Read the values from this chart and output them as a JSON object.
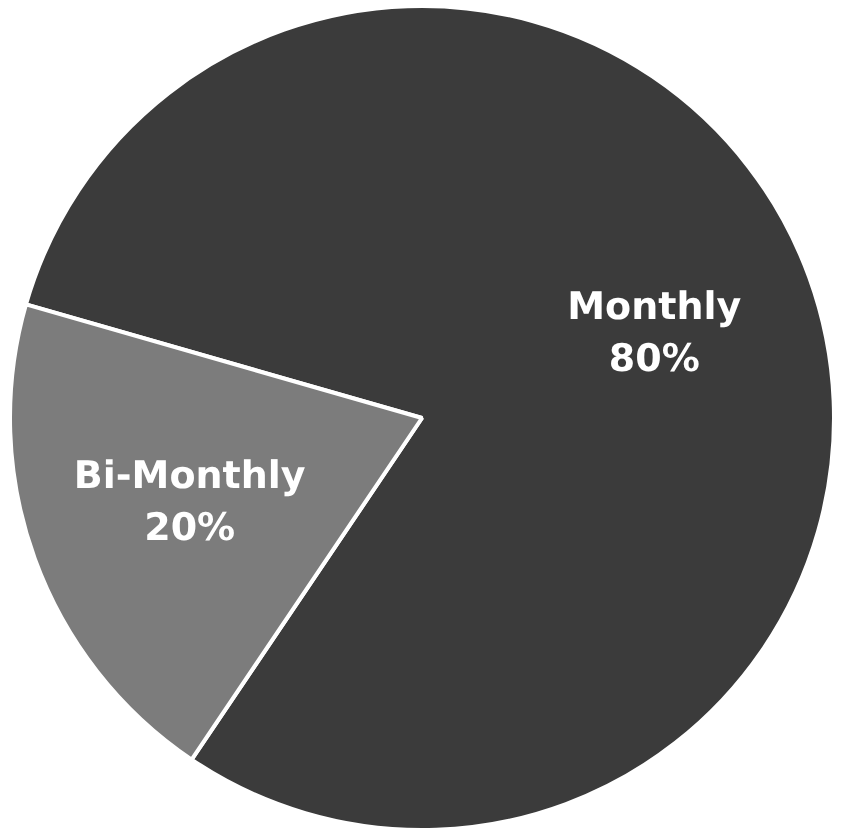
{
  "chart_data": {
    "type": "pie",
    "categories": [
      "Monthly",
      "Bi-Monthly"
    ],
    "values": [
      80,
      20
    ],
    "value_labels": [
      "80%",
      "20%"
    ],
    "colors": [
      "#3b3b3b",
      "#7c7c7c"
    ]
  }
}
